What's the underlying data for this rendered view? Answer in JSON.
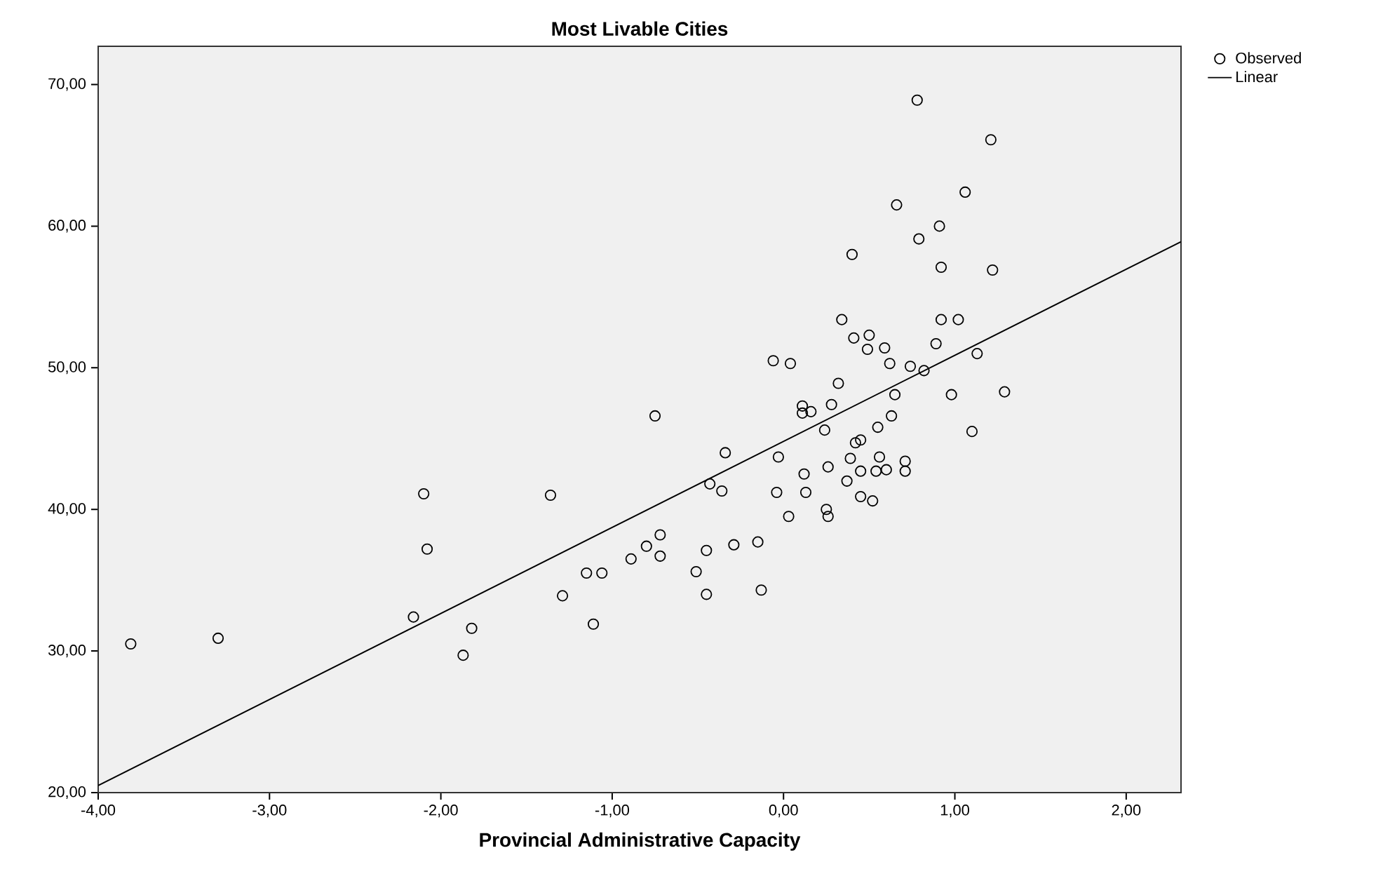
{
  "chart_data": {
    "type": "scatter",
    "title": "Most Livable Cities",
    "xlabel": "Provincial Administrative Capacity",
    "xlim": [
      -4,
      2.32
    ],
    "ylim": [
      20,
      72.7
    ],
    "xticks": [
      {
        "value": -4,
        "label": "-4,00"
      },
      {
        "value": -3,
        "label": "-3,00"
      },
      {
        "value": -2,
        "label": "-2,00"
      },
      {
        "value": -1,
        "label": "-1,00"
      },
      {
        "value": 0,
        "label": "0,00"
      },
      {
        "value": 1,
        "label": "1,00"
      },
      {
        "value": 2,
        "label": "2,00"
      }
    ],
    "yticks": [
      {
        "value": 20,
        "label": "20,00"
      },
      {
        "value": 30,
        "label": "30,00"
      },
      {
        "value": 40,
        "label": "40,00"
      },
      {
        "value": 50,
        "label": "50,00"
      },
      {
        "value": 60,
        "label": "60,00"
      },
      {
        "value": 70,
        "label": "70,00"
      }
    ],
    "legend": "top right",
    "series": [
      {
        "name": "Observed",
        "marker": "circle",
        "color": "#000000",
        "x": [
          0.78,
          1.21,
          1.06,
          0.66,
          0.91,
          0.79,
          0.4,
          0.92,
          1.22,
          0.34,
          0.92,
          1.02,
          0.41,
          0.5,
          0.49,
          0.59,
          0.89,
          1.13,
          0.62,
          0.74,
          0.82,
          -0.06,
          0.04,
          0.32,
          0.65,
          0.98,
          1.29,
          0.11,
          0.11,
          0.16,
          0.28,
          0.63,
          -0.75,
          0.24,
          0.55,
          1.1,
          -0.34,
          0.42,
          0.45,
          -0.03,
          0.39,
          0.56,
          0.71,
          0.26,
          0.12,
          0.45,
          0.54,
          0.6,
          0.71,
          0.37,
          -0.43,
          -0.36,
          -0.04,
          0.13,
          0.45,
          0.52,
          0.25,
          0.26,
          0.03,
          -0.72,
          -0.8,
          -0.72,
          -0.45,
          -0.29,
          -0.15,
          -0.89,
          -1.15,
          -1.06,
          -0.51,
          -1.29,
          -0.45,
          -0.13,
          -1.11,
          -3.81,
          -3.3,
          -2.1,
          -2.08,
          -2.16,
          -1.82,
          -1.87,
          -1.36
        ],
        "values": [
          68.9,
          66.1,
          62.4,
          61.5,
          60.0,
          59.1,
          58.0,
          57.1,
          56.9,
          53.4,
          53.4,
          53.4,
          52.1,
          52.3,
          51.3,
          51.4,
          51.7,
          51.0,
          50.3,
          50.1,
          49.8,
          50.5,
          50.3,
          48.9,
          48.1,
          48.1,
          48.3,
          47.3,
          46.8,
          46.9,
          47.4,
          46.6,
          46.6,
          45.6,
          45.8,
          45.5,
          44.0,
          44.7,
          44.9,
          43.7,
          43.6,
          43.7,
          43.4,
          43.0,
          42.5,
          42.7,
          42.7,
          42.8,
          42.7,
          42.0,
          41.8,
          41.3,
          41.2,
          41.2,
          40.9,
          40.6,
          40.0,
          39.5,
          39.5,
          38.2,
          37.4,
          36.7,
          37.1,
          37.5,
          37.7,
          36.5,
          35.5,
          35.5,
          35.6,
          33.9,
          34.0,
          34.3,
          31.9,
          30.5,
          30.9,
          41.1,
          37.2,
          32.4,
          31.6,
          29.7,
          41.0
        ]
      },
      {
        "name": "Linear",
        "type": "line",
        "color": "#000000",
        "line_style": "solid",
        "x": [
          -4,
          2.32
        ],
        "values": [
          20.5,
          58.9
        ]
      }
    ]
  }
}
